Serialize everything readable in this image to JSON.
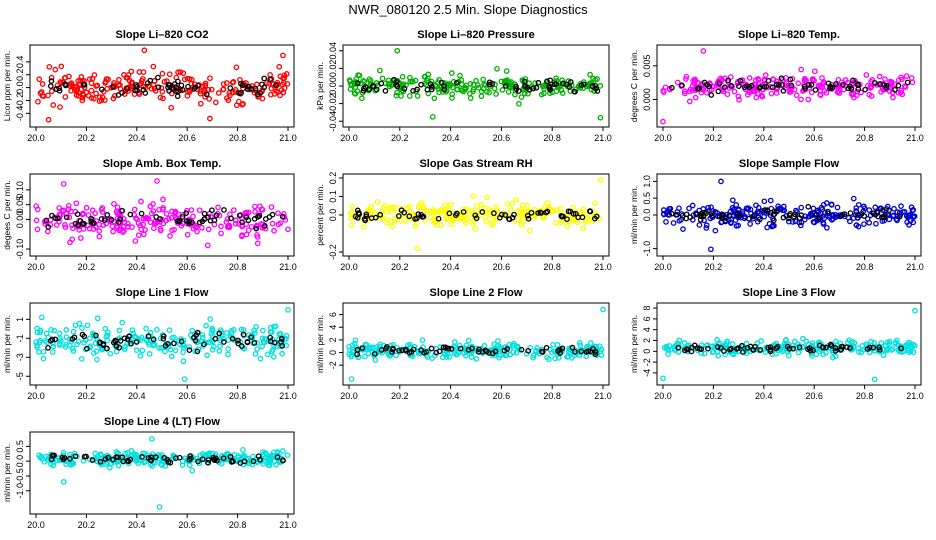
{
  "page": {
    "title": "NWR_080120  2.5 Min. Slope Diagnostics"
  },
  "chart_data": [
    {
      "type": "scatter",
      "title": "Slope Li–820 CO2",
      "ylabel": "Licor ppm per min.",
      "color": "#ff0000",
      "xlim": [
        20.0,
        21.0
      ],
      "ylim": [
        -0.55,
        0.6
      ],
      "xticks": [
        "20.0",
        "20.2",
        "20.4",
        "20.6",
        "20.8",
        "21.0"
      ],
      "xtick_values": [
        20.0,
        20.2,
        20.4,
        20.6,
        20.8,
        21.0
      ],
      "yticks": [
        "-0.4",
        "-0.2",
        "0.0",
        "0.2",
        "0.4"
      ],
      "ytick_values": [
        -0.4,
        -0.2,
        0.0,
        0.2,
        0.4
      ],
      "center": 0.0,
      "spread": 0.22,
      "black_spread": 0.12,
      "n_points": 230,
      "n_black": 60,
      "outliers": [
        [
          20.43,
          0.58
        ],
        [
          20.05,
          -0.5
        ],
        [
          20.69,
          -0.48
        ],
        [
          20.98,
          0.5
        ]
      ]
    },
    {
      "type": "scatter",
      "title": "Slope Li–820 Pressure",
      "ylabel": "kPa per min.",
      "color": "#00b000",
      "xlim": [
        20.0,
        21.0
      ],
      "ylim": [
        -0.042,
        0.042
      ],
      "xticks": [
        "20.0",
        "20.2",
        "20.4",
        "20.6",
        "20.8",
        "21.0"
      ],
      "xtick_values": [
        20.0,
        20.2,
        20.4,
        20.6,
        20.8,
        21.0
      ],
      "yticks": [
        "-0.04",
        "-0.02",
        "0.00",
        "0.02",
        "0.04"
      ],
      "ytick_values": [
        -0.04,
        -0.02,
        0.0,
        0.02,
        0.04
      ],
      "center": 0.0,
      "spread": 0.011,
      "black_spread": 0.006,
      "n_points": 230,
      "n_black": 60,
      "outliers": [
        [
          20.19,
          0.04
        ],
        [
          20.33,
          -0.035
        ],
        [
          20.99,
          -0.036
        ]
      ]
    },
    {
      "type": "scatter",
      "title": "Slope Li–820 Temp.",
      "ylabel": "degrees C per min.",
      "color": "#ff00ff",
      "xlim": [
        20.0,
        21.0
      ],
      "ylim": [
        -0.0035,
        0.0075
      ],
      "xticks": [
        "20.0",
        "20.2",
        "20.4",
        "20.6",
        "20.8",
        "21.0"
      ],
      "xtick_values": [
        20.0,
        20.2,
        20.4,
        20.6,
        20.8,
        21.0
      ],
      "yticks": [
        "0.000",
        "0.005"
      ],
      "ytick_values": [
        0.0,
        0.005
      ],
      "center": 0.0019,
      "spread": 0.0016,
      "black_spread": 0.0009,
      "n_points": 230,
      "n_black": 60,
      "outliers": [
        [
          20.0,
          -0.0033
        ],
        [
          20.16,
          0.0072
        ]
      ]
    },
    {
      "type": "scatter",
      "title": "Slope Amb. Box Temp.",
      "ylabel": "degees C per min.",
      "color": "#ff00ff",
      "xlim": [
        20.0,
        21.0
      ],
      "ylim": [
        -0.11,
        0.14
      ],
      "xticks": [
        "20.0",
        "20.2",
        "20.4",
        "20.6",
        "20.8",
        "21.0"
      ],
      "xtick_values": [
        20.0,
        20.2,
        20.4,
        20.6,
        20.8,
        21.0
      ],
      "yticks": [
        "-0.10",
        "0.00",
        "0.05",
        "0.10"
      ],
      "ytick_values": [
        -0.1,
        0.0,
        0.05,
        0.1
      ],
      "center": 0.0,
      "spread": 0.05,
      "black_spread": 0.025,
      "n_points": 240,
      "n_black": 60,
      "outliers": [
        [
          20.48,
          0.13
        ],
        [
          20.11,
          0.12
        ]
      ]
    },
    {
      "type": "scatter",
      "title": "Slope Gas Stream RH",
      "ylabel": "percent per min.",
      "color": "#ffff00",
      "xlim": [
        20.0,
        21.0
      ],
      "ylim": [
        -0.2,
        0.2
      ],
      "xticks": [
        "20.0",
        "20.2",
        "20.4",
        "20.6",
        "20.8",
        "21.0"
      ],
      "xtick_values": [
        20.0,
        20.2,
        20.4,
        20.6,
        20.8,
        21.0
      ],
      "yticks": [
        "-0.2",
        "0.0",
        "0.1",
        "0.2"
      ],
      "ytick_values": [
        -0.2,
        0.0,
        0.1,
        0.2
      ],
      "center": 0.0,
      "spread": 0.06,
      "black_spread": 0.03,
      "n_points": 240,
      "n_black": 60,
      "outliers": [
        [
          20.99,
          0.19
        ],
        [
          20.27,
          -0.18
        ]
      ]
    },
    {
      "type": "scatter",
      "title": "Slope Sample Flow",
      "ylabel": "ml/min per min.",
      "color": "#0000d0",
      "xlim": [
        20.0,
        21.0
      ],
      "ylim": [
        -1.1,
        1.1
      ],
      "xticks": [
        "20.0",
        "20.2",
        "20.4",
        "20.6",
        "20.8",
        "21.0"
      ],
      "xtick_values": [
        20.0,
        20.2,
        20.4,
        20.6,
        20.8,
        21.0
      ],
      "yticks": [
        "-1.0",
        "0.0",
        "0.5",
        "1.0"
      ],
      "ytick_values": [
        -1.0,
        0.0,
        0.5,
        1.0
      ],
      "center": 0.0,
      "spread": 0.3,
      "black_spread": 0.15,
      "n_points": 240,
      "n_black": 60,
      "outliers": [
        [
          20.23,
          1.0
        ],
        [
          20.19,
          -1.02
        ]
      ]
    },
    {
      "type": "scatter",
      "title": "Slope Line 1 Flow",
      "ylabel": "ml/min per min.",
      "color": "#00e0e0",
      "xlim": [
        20.0,
        21.0
      ],
      "ylim": [
        -5.5,
        2.3
      ],
      "xticks": [
        "20.0",
        "20.2",
        "20.4",
        "20.6",
        "20.8",
        "21.0"
      ],
      "xtick_values": [
        20.0,
        20.2,
        20.4,
        20.6,
        20.8,
        21.0
      ],
      "yticks": [
        "-5",
        "-3",
        "-1",
        "1"
      ],
      "ytick_values": [
        -5,
        -3,
        -1,
        1
      ],
      "center": -1.3,
      "spread": 1.6,
      "black_spread": 0.8,
      "n_points": 240,
      "n_black": 60,
      "outliers": [
        [
          21.0,
          2.0
        ],
        [
          20.59,
          -5.3
        ]
      ]
    },
    {
      "type": "scatter",
      "title": "Slope Line 2 Flow",
      "ylabel": "ml/min per min.",
      "color": "#00e0e0",
      "xlim": [
        20.0,
        21.0
      ],
      "ylim": [
        -4.5,
        7.2
      ],
      "xticks": [
        "20.0",
        "20.2",
        "20.4",
        "20.6",
        "20.8",
        "21.0"
      ],
      "xtick_values": [
        20.0,
        20.2,
        20.4,
        20.6,
        20.8,
        21.0
      ],
      "yticks": [
        "-2",
        "0",
        "2",
        "4",
        "6"
      ],
      "ytick_values": [
        -2,
        0,
        2,
        4,
        6
      ],
      "center": 0.3,
      "spread": 1.1,
      "black_spread": 0.6,
      "n_points": 240,
      "n_black": 60,
      "outliers": [
        [
          21.0,
          6.8
        ],
        [
          20.01,
          -4.2
        ]
      ]
    },
    {
      "type": "scatter",
      "title": "Slope Line 3 Flow",
      "ylabel": "ml/min per min.",
      "color": "#00e0e0",
      "xlim": [
        20.0,
        21.0
      ],
      "ylim": [
        -5.5,
        8.2
      ],
      "xticks": [
        "20.0",
        "20.2",
        "20.4",
        "20.6",
        "20.8",
        "21.0"
      ],
      "xtick_values": [
        20.0,
        20.2,
        20.4,
        20.6,
        20.8,
        21.0
      ],
      "yticks": [
        "-4",
        "-2",
        "0",
        "2",
        "4",
        "6",
        "8"
      ],
      "ytick_values": [
        -4,
        -2,
        0,
        2,
        4,
        6,
        8
      ],
      "center": 0.6,
      "spread": 1.2,
      "black_spread": 0.6,
      "n_points": 240,
      "n_black": 60,
      "outliers": [
        [
          21.0,
          7.5
        ],
        [
          20.0,
          -5.0
        ],
        [
          20.84,
          -5.2
        ]
      ]
    },
    {
      "type": "scatter",
      "title": "Slope Line 4 (LT) Flow",
      "ylabel": "ml/min per min.",
      "color": "#00e0e0",
      "xlim": [
        20.0,
        21.0
      ],
      "ylim": [
        -1.65,
        0.85
      ],
      "xticks": [
        "20.0",
        "20.2",
        "20.4",
        "20.6",
        "20.8",
        "21.0"
      ],
      "xtick_values": [
        20.0,
        20.2,
        20.4,
        20.6,
        20.8,
        21.0
      ],
      "yticks": [
        "-1.0",
        "-0.5",
        "0.0",
        "0.5"
      ],
      "ytick_values": [
        -1.0,
        -0.5,
        0.0,
        0.5
      ],
      "center": 0.08,
      "spread": 0.22,
      "black_spread": 0.12,
      "n_points": 240,
      "n_black": 60,
      "outliers": [
        [
          20.49,
          -1.55
        ],
        [
          20.46,
          0.75
        ],
        [
          20.11,
          -0.7
        ]
      ]
    }
  ]
}
